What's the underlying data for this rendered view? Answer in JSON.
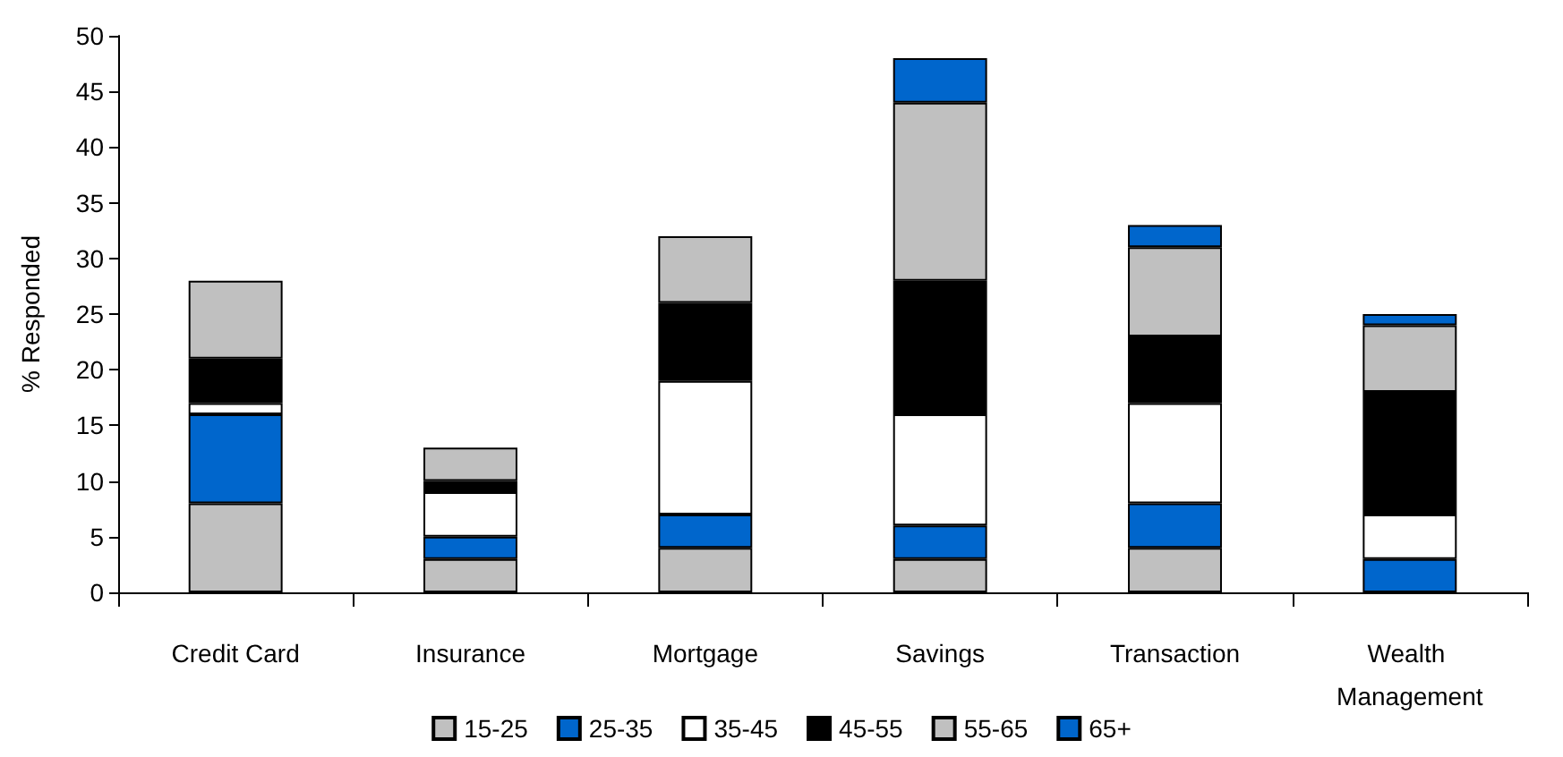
{
  "chart_data": {
    "type": "bar",
    "stacked": true,
    "ylabel": "% Responded",
    "categories": [
      "Credit Card",
      "Insurance",
      "Mortgage",
      "Savings",
      "Transaction",
      "Wealth Management"
    ],
    "series": [
      {
        "name": "15-25",
        "color": "#c0c0c0",
        "values": [
          8,
          3,
          4,
          3,
          4,
          0
        ]
      },
      {
        "name": "25-35",
        "color": "#0066cc",
        "values": [
          8,
          2,
          3,
          3,
          4,
          3
        ]
      },
      {
        "name": "35-45",
        "color": "#ffffff",
        "values": [
          1,
          4,
          12,
          10,
          9,
          4
        ]
      },
      {
        "name": "45-55",
        "color": "#000000",
        "values": [
          4,
          1,
          7,
          12,
          6,
          11
        ]
      },
      {
        "name": "55-65",
        "color": "#c0c0c0",
        "values": [
          7,
          3,
          6,
          16,
          8,
          6
        ]
      },
      {
        "name": "65+",
        "color": "#0066cc",
        "values": [
          0,
          0,
          0,
          4,
          2,
          1
        ]
      }
    ],
    "ylim": [
      0,
      50
    ],
    "yticks": [
      0,
      5,
      10,
      15,
      20,
      25,
      30,
      35,
      40,
      45,
      50
    ],
    "grid": false,
    "legend": "bottom"
  }
}
